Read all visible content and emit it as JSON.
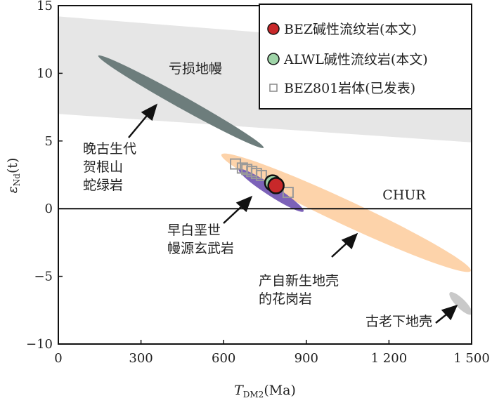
{
  "chart_data": {
    "type": "scatter",
    "xlabel": "T_DM2(Ma)",
    "xlabel_main": "T",
    "xlabel_sub": "DM2",
    "xlabel_unit": "(Ma)",
    "ylabel_main": "ε",
    "ylabel_sub": "Nd",
    "ylabel_tail": "(t)",
    "xlim": [
      0,
      1500
    ],
    "ylim": [
      -10,
      15
    ],
    "xticks": [
      0,
      300,
      600,
      900,
      1200,
      1500
    ],
    "xtick_labels": [
      "0",
      "300",
      "600",
      "900",
      "1 200",
      "1 500"
    ],
    "yticks": [
      -10,
      -5,
      0,
      5,
      10,
      15
    ],
    "ytick_labels": [
      "−10",
      "−5",
      "0",
      "5",
      "10",
      "15"
    ],
    "chur_label": "CHUR",
    "chur_value": 0,
    "legend": [
      {
        "label": "BEZ碱性流纹岩(本文)",
        "color": "#c8282a",
        "marker": "circle"
      },
      {
        "label": "ALWL碱性流纹岩(本文)",
        "color": "#9fd4a8",
        "marker": "circle"
      },
      {
        "label": "BEZ801岩体(已发表)",
        "color": "#999999",
        "marker": "square"
      }
    ],
    "legend_position": "top-right",
    "series": [
      {
        "name": "BEZ801岩体(已发表)",
        "points": [
          [
            643,
            3.3
          ],
          [
            668,
            3.0
          ],
          [
            684,
            2.9
          ],
          [
            702,
            2.75
          ],
          [
            719,
            2.6
          ],
          [
            737,
            2.45
          ],
          [
            834,
            1.2
          ]
        ]
      },
      {
        "name": "ALWL碱性流纹岩(本文)",
        "points": [
          [
            778,
            1.9
          ]
        ]
      },
      {
        "name": "BEZ碱性流纹岩(本文)",
        "points": [
          [
            790,
            1.7
          ]
        ]
      }
    ],
    "regions": [
      {
        "name": "亏损地幔",
        "type": "band",
        "color": "#e6e6e6",
        "top": [
          [
            0,
            14.2
          ],
          [
            1500,
            11.8
          ]
        ],
        "bottom": [
          [
            0,
            7.0
          ],
          [
            1500,
            4.9
          ]
        ]
      },
      {
        "name": "晚古生代贺根山蛇绿岩",
        "type": "ellipse",
        "color": "#6d7d7c",
        "ends": [
          [
            145,
            11.3
          ],
          [
            745,
            4.5
          ]
        ],
        "halfwidth": 0.45
      },
      {
        "name": "产自新生地壳的花岗岩",
        "type": "ellipse",
        "color": "#fdd3aa",
        "ends": [
          [
            592,
            4.0
          ],
          [
            1497,
            -4.6
          ]
        ],
        "halfwidth": 0.9
      },
      {
        "name": "早白垩世幔源玄武岩",
        "type": "ellipse",
        "color": "#7c62b8",
        "ends": [
          [
            655,
            2.9
          ],
          [
            890,
            -0.2
          ]
        ],
        "halfwidth": 0.4
      },
      {
        "name": "古老下地壳",
        "type": "ellipse",
        "color": "#c9c9c9",
        "ends": [
          [
            1421,
            -6.2
          ],
          [
            1500,
            -7.8
          ]
        ],
        "halfwidth": 0.35
      }
    ],
    "annotations": {
      "depleted_mantle": "亏损地幔",
      "ophiolite": [
        "晚古生代",
        "贺根山",
        "蛇绿岩"
      ],
      "basalt": [
        "早白垩世",
        "幔源玄武岩"
      ],
      "juvenile": [
        "产自新生地壳",
        "的花岗岩"
      ],
      "lower_crust": "古老下地壳"
    }
  }
}
